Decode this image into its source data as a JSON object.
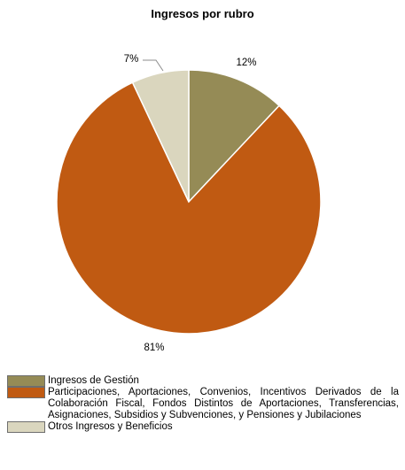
{
  "chart_data": {
    "type": "pie",
    "title": "Ingresos por rubro",
    "slices": [
      {
        "label": "Ingresos de Gestión",
        "value": 12,
        "data_label": "12%",
        "color": "#958B56"
      },
      {
        "label": "Participaciones, Aportaciones, Convenios, Incentivos Derivados de la Colaboración Fiscal, Fondos Distintos de Aportaciones, Transferencias, Asignaciones, Subsidios y Subvenciones, y Pensiones y Jubilaciones",
        "value": 81,
        "data_label": "81%",
        "color": "#C05A12"
      },
      {
        "label": "Otros Ingresos y Beneficios",
        "value": 7,
        "data_label": "7%",
        "color": "#DAD6BE"
      }
    ],
    "legend_position": "bottom"
  }
}
